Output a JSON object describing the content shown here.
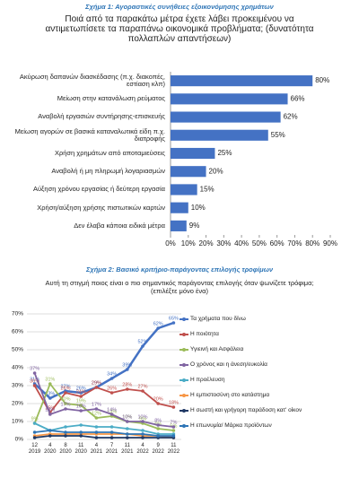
{
  "chart_data": [
    {
      "type": "bar",
      "orientation": "horizontal",
      "title": "Σχήμα 1: Αγοραστικές συνήθειες εξοικονόμησης χρημάτων",
      "subtitle": "Ποιά από τα παρακάτω μέτρα έχετε λάβει προκειμένου να αντιμετωπίσετε τα παραπάνω οικονομικά προβλήματα; (δυνατότητα πολλαπλών απαντήσεων)",
      "categories": [
        "Ακύρωση δαπανών διασκέδασης (π.χ. διακοπές, εστίαση κλπ)",
        "Μείωση στην κατανάλωση ρεύματος",
        "Αναβολή εργασιών συντήρησης-επισκευής",
        "Μείωση αγορών σε βασικά καταναλωτικά είδη π.χ. διατροφής",
        "Χρήση χρημάτων από αποταμιεύσεις",
        "Αναβολή ή μη πληρωμή λογαριασμών",
        "Αύξηση χρόνου εργασίας ή δεύτερη εργασία",
        "Χρήση/αύξηση χρήσης πιστωτικών καρτών",
        "Δεν έλαβα κάποια ειδικά μέτρα"
      ],
      "values": [
        80,
        66,
        62,
        55,
        25,
        20,
        15,
        10,
        9
      ],
      "value_labels": [
        "80%",
        "66%",
        "62%",
        "55%",
        "25%",
        "20%",
        "15%",
        "10%",
        "9%"
      ],
      "color": "#4472c4",
      "xlim": [
        0,
        90
      ],
      "xticks": [
        {
          "value": 0,
          "label": "0%"
        },
        {
          "value": 10,
          "label": "10%"
        },
        {
          "value": 20,
          "label": "20%"
        },
        {
          "value": 30,
          "label": "30%"
        },
        {
          "value": 40,
          "label": "40%"
        },
        {
          "value": 50,
          "label": "50%"
        },
        {
          "value": 60,
          "label": "60%"
        },
        {
          "value": 70,
          "label": "70%"
        },
        {
          "value": 80,
          "label": "80%"
        },
        {
          "value": 90,
          "label": "90%"
        }
      ]
    },
    {
      "type": "line",
      "title": "Σχήμα 2: Βασικό κριτήριο-παράγοντας επιλογής τροφίμων",
      "subtitle": "Αυτή τη στιγμή ποιος είναι ο πιο σημαντικός παράγοντας επιλογής όταν ψωνίζετε τρόφιμα; (επιλέξτε μόνο ένα)",
      "categories": [
        "12 2019",
        "4 2020",
        "8 2020",
        "11 2020",
        "4 2021",
        "7 2021",
        "11 2021",
        "4 2022",
        "9 2022",
        "11 2022"
      ],
      "series": [
        {
          "name": "Τα χρήματα που δίνω",
          "color": "#4472c4",
          "values": [
            31,
            23,
            27,
            26,
            29,
            34,
            39,
            52,
            62,
            65
          ],
          "value_labels": [
            "31%",
            "23%",
            "27%",
            "26%",
            "29%",
            "34%",
            "39%",
            "52%",
            "62%",
            "65%"
          ]
        },
        {
          "name": "Η ποιότητα",
          "color": "#c0504d",
          "values": [
            30,
            15,
            26,
            24,
            29,
            26,
            28,
            27,
            20,
            18
          ],
          "value_labels": [
            "30%",
            "15%",
            "26%",
            "24%",
            "29%",
            "26%",
            "28%",
            "27%",
            "20%",
            "18%"
          ]
        },
        {
          "name": "Υγιεινή και Ασφάλεια",
          "color": "#9bbb59",
          "values": [
            9,
            31,
            20,
            19,
            12,
            13,
            10,
            9,
            6,
            5
          ],
          "value_labels": [
            "9%",
            "31%",
            "20%",
            "19%",
            "12%",
            "13%",
            "10%",
            "9%",
            "6%",
            "5%"
          ]
        },
        {
          "name": "Ο χρόνος και η άνεση/ευκολία",
          "color": "#8064a2",
          "values": [
            37,
            14,
            17,
            16,
            17,
            14,
            10,
            10,
            8,
            7
          ],
          "value_labels": [
            "37%",
            "14%",
            "17%",
            "16%",
            "17%",
            "14%",
            "10%",
            "10%",
            "8%",
            "7%"
          ]
        },
        {
          "name": "Η προέλευση",
          "color": "#4bacc6",
          "values": [
            9,
            5,
            7,
            8,
            7,
            7,
            6,
            5,
            3,
            3
          ]
        },
        {
          "name": "Η εμπιστοσύνη στο κατάστημα",
          "color": "#f79646",
          "values": [
            2,
            3,
            3,
            3,
            3,
            3,
            3,
            2,
            2,
            1
          ]
        },
        {
          "name": "Η σωστή και γρήγορη παράδοση κατ' οίκον",
          "color": "#1f3864",
          "values": [
            1,
            2,
            2,
            2,
            1,
            1,
            1,
            1,
            1,
            1
          ]
        },
        {
          "name": "Η επωνυμία/ Μάρκα προϊόντων",
          "color": "#2e75b6",
          "values": [
            4,
            5,
            4,
            4,
            4,
            4,
            3,
            3,
            2,
            2
          ]
        }
      ],
      "ylim": [
        0,
        70
      ],
      "yticks": [
        {
          "value": 0,
          "label": "0%"
        },
        {
          "value": 10,
          "label": "10%"
        },
        {
          "value": 20,
          "label": "20%"
        },
        {
          "value": 30,
          "label": "30%"
        },
        {
          "value": 40,
          "label": "40%"
        },
        {
          "value": 50,
          "label": "50%"
        },
        {
          "value": 60,
          "label": "60%"
        },
        {
          "value": 70,
          "label": "70%"
        }
      ],
      "grid": true
    }
  ]
}
